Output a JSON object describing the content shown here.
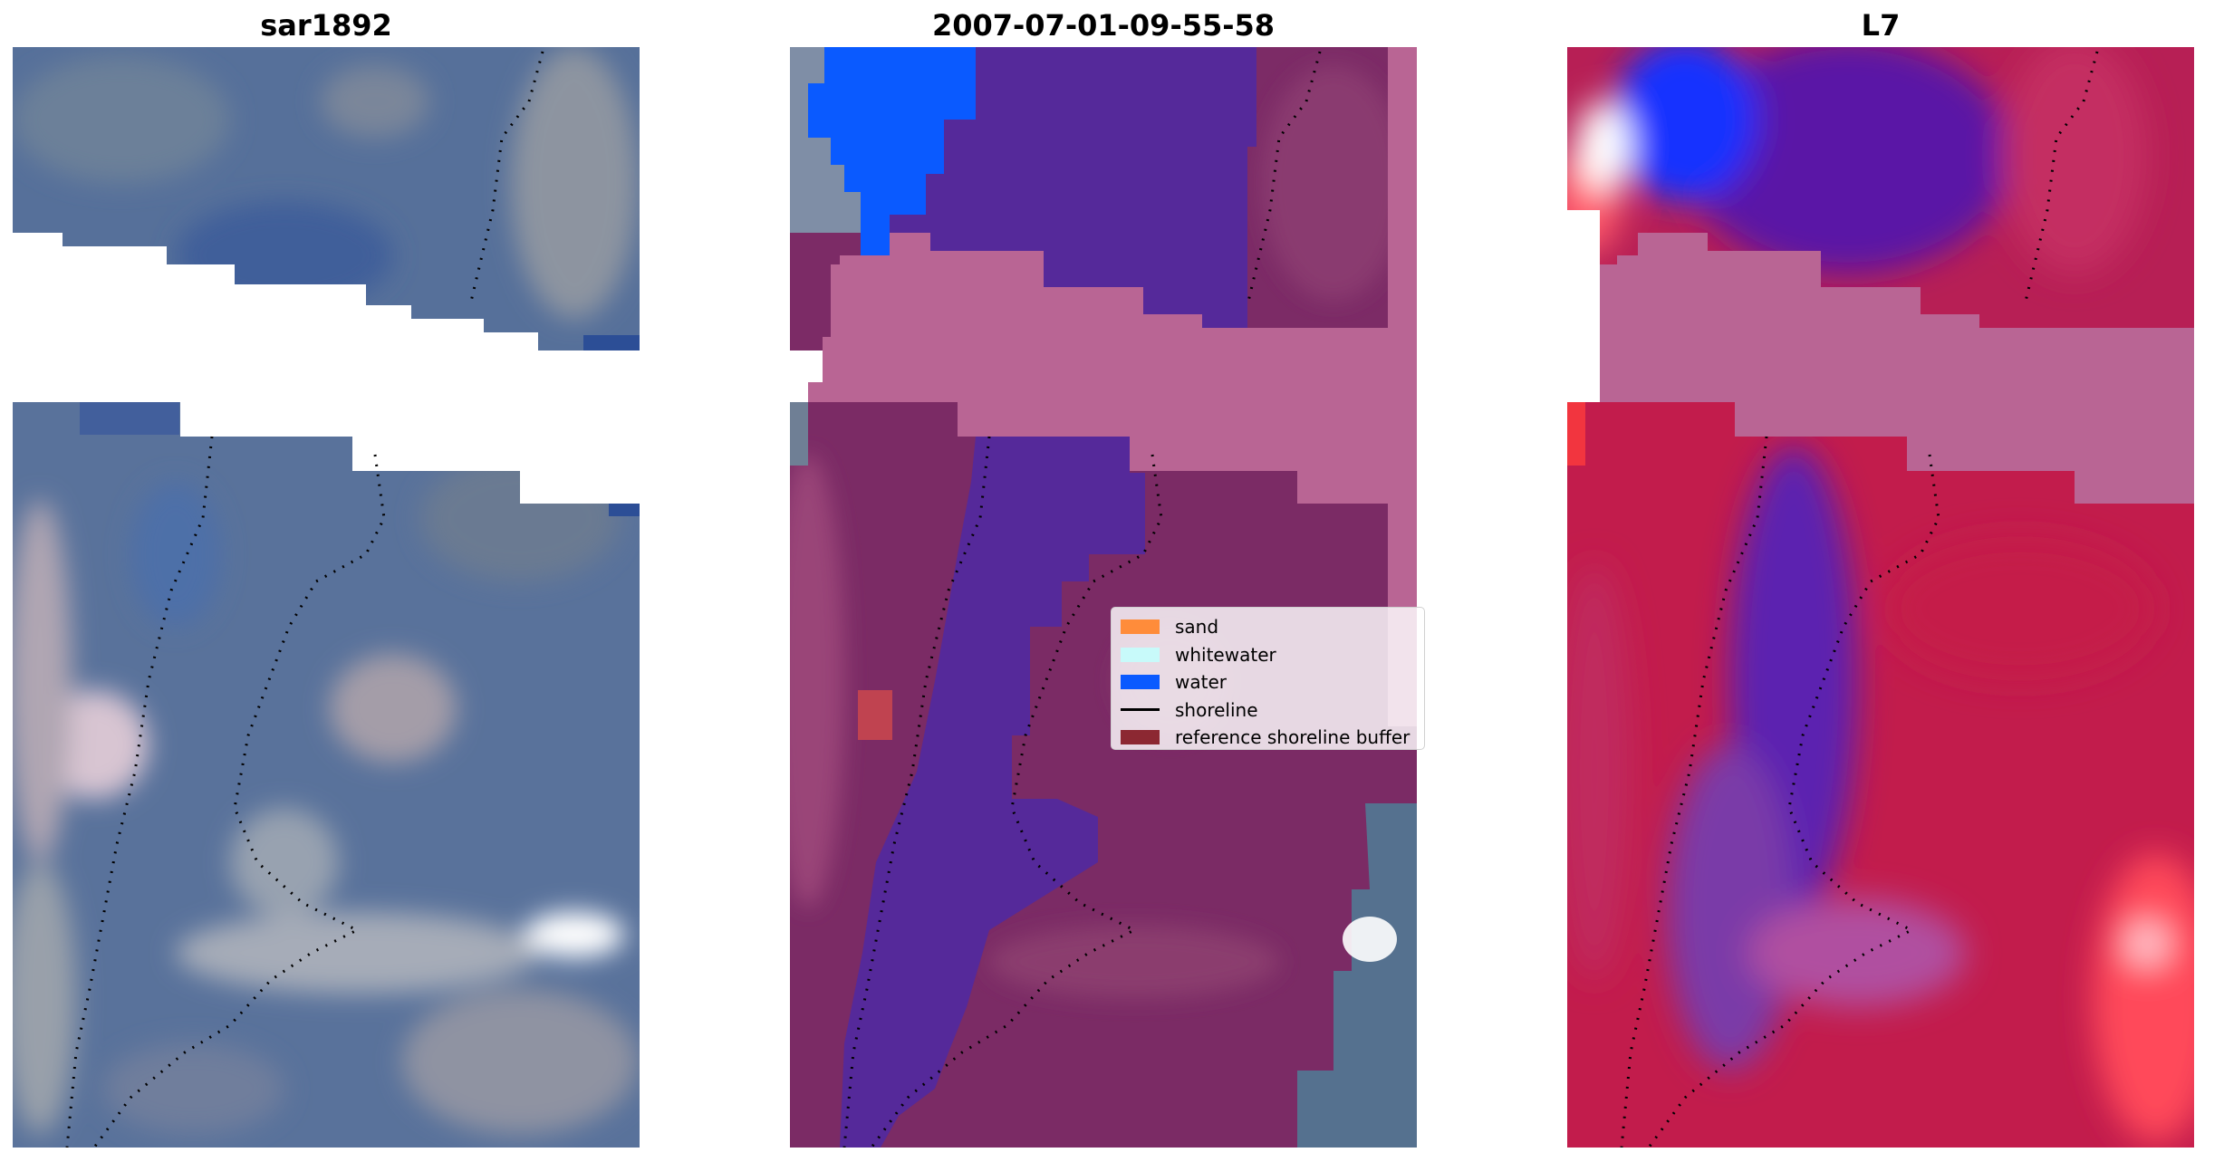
{
  "panels": [
    {
      "title": "sar1892",
      "image": "sar-rgb-composite"
    },
    {
      "title": "2007-07-01-09-55-58",
      "image": "classified-overlay"
    },
    {
      "title": "L7",
      "image": "mndwi-index-colormap"
    }
  ],
  "legend": {
    "items": [
      {
        "label": "sand",
        "color": "#ff8c3a",
        "kind": "patch"
      },
      {
        "label": "whitewater",
        "color": "#c8fafa",
        "kind": "patch"
      },
      {
        "label": "water",
        "color": "#0a5aff",
        "kind": "patch"
      },
      {
        "label": "shoreline",
        "color": "#000000",
        "kind": "line"
      },
      {
        "label": "reference shoreline buffer",
        "color": "#8c2832",
        "kind": "patch"
      }
    ]
  },
  "colors": {
    "sar_land": "#56709a",
    "sar_light": "#9fa6b4",
    "class_land": "#7c2b66",
    "class_water": "#55299a",
    "class_bright_water": "#0a5aff",
    "buffer_band": "#b96594",
    "index_red": "#c21c4c",
    "index_purple": "#5a17a6",
    "index_blue": "#1530ff"
  }
}
